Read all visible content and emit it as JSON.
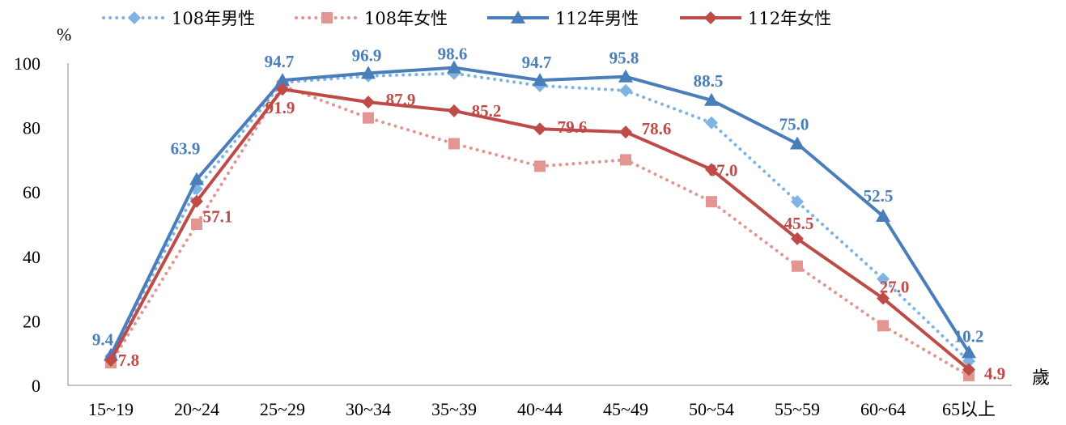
{
  "chart_data": {
    "type": "line",
    "categories": [
      "15~19",
      "20~24",
      "25~29",
      "30~34",
      "35~39",
      "40~44",
      "45~49",
      "50~54",
      "55~59",
      "60~64",
      "65以上"
    ],
    "ylim": [
      0,
      100
    ],
    "yticks": [
      0,
      20,
      40,
      60,
      80,
      100
    ],
    "ylabel": "%",
    "xlabel": "歲",
    "grid": false,
    "legend_position": "top",
    "series": [
      {
        "name": "108年男性",
        "color": "#7fb3e3",
        "line_style": "dotted",
        "marker": "diamond",
        "values": [
          9.0,
          61.0,
          94.0,
          96.0,
          96.8,
          93.0,
          91.5,
          81.5,
          57.0,
          33.0,
          7.5
        ],
        "labels_shown": false
      },
      {
        "name": "108年女性",
        "color": "#e39592",
        "line_style": "dotted",
        "marker": "square",
        "values": [
          7.0,
          50.0,
          93.0,
          83.0,
          75.0,
          68.0,
          70.0,
          57.0,
          37.0,
          18.5,
          3.0
        ],
        "labels_shown": false
      },
      {
        "name": "112年男性",
        "color": "#4a7ebb",
        "line_style": "solid",
        "marker": "triangle",
        "values": [
          9.4,
          63.9,
          94.7,
          96.9,
          98.6,
          94.7,
          95.8,
          88.5,
          75.0,
          52.5,
          10.2
        ],
        "labels_shown": true,
        "data_labels": [
          "9.4",
          "63.9",
          "94.7",
          "96.9",
          "98.6",
          "94.7",
          "95.8",
          "88.5",
          "75.0",
          "52.5",
          "10.2"
        ]
      },
      {
        "name": "112年女性",
        "color": "#be4b48",
        "line_style": "solid",
        "marker": "diamond",
        "values": [
          7.8,
          57.1,
          91.9,
          87.9,
          85.2,
          79.6,
          78.6,
          67.0,
          45.5,
          27.0,
          4.9
        ],
        "labels_shown": true,
        "data_labels": [
          "7.8",
          "57.1",
          "91.9",
          "87.9",
          "85.2",
          "79.6",
          "78.6",
          "67.0",
          "45.5",
          "27.0",
          "4.9"
        ]
      }
    ]
  }
}
